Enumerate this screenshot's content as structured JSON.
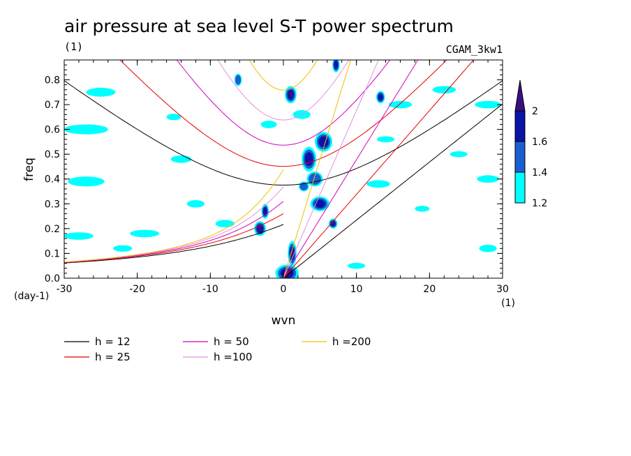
{
  "chart_data": {
    "type": "heatmap",
    "title": "air pressure at sea level S-T power spectrum",
    "subtitle_left": "(1)",
    "subtitle_right": "CGAM_3kw1",
    "xlabel": "wvn",
    "ylabel": "freq",
    "x_unit": "(1)",
    "y_unit": "(day-1)",
    "xlim": [
      -30,
      30
    ],
    "ylim": [
      0,
      0.88
    ],
    "x_ticks": [
      -30,
      -20,
      -10,
      0,
      10,
      20,
      30
    ],
    "x_tick_labels": [
      "-30",
      "-20",
      "-10",
      "0",
      "10",
      "20",
      "30"
    ],
    "y_ticks": [
      0,
      0.1,
      0.2,
      0.3,
      0.4,
      0.5,
      0.6,
      0.7,
      0.8
    ],
    "y_tick_labels": [
      "0.0",
      "0.1",
      "0.2",
      "0.3",
      "0.4",
      "0.5",
      "0.6",
      "0.7",
      "0.8"
    ],
    "colorbar": {
      "levels": [
        1.2,
        1.4,
        1.6,
        2
      ],
      "level_labels": [
        "1.2",
        "1.4",
        "1.6",
        "2"
      ],
      "colors": [
        "#00ffff",
        "#1a5fd0",
        "#0a14a8",
        "#3a1080"
      ]
    },
    "dispersion_curves": [
      {
        "name": "h = 12",
        "h": 12,
        "color": "#000000"
      },
      {
        "name": "h = 25",
        "h": 25,
        "color": "#e00000"
      },
      {
        "name": "h = 50",
        "h": 50,
        "color": "#d000c0"
      },
      {
        "name": "h =100",
        "h": 100,
        "color": "#e090e0"
      },
      {
        "name": "h =200",
        "h": 200,
        "color": "#f0c000"
      }
    ],
    "shaded_regions": [
      {
        "x": 0.5,
        "y": 0.02,
        "rx": 1.6,
        "ry": 0.035,
        "level": 2
      },
      {
        "x": 1.2,
        "y": 0.1,
        "rx": 0.6,
        "ry": 0.05,
        "level": 2
      },
      {
        "x": 1.0,
        "y": 0.74,
        "rx": 0.8,
        "ry": 0.035,
        "level": 2
      },
      {
        "x": -3.2,
        "y": 0.2,
        "rx": 0.8,
        "ry": 0.03,
        "level": 2
      },
      {
        "x": 5.0,
        "y": 0.3,
        "rx": 1.3,
        "ry": 0.03,
        "level": 1.6
      },
      {
        "x": 3.5,
        "y": 0.48,
        "rx": 1.0,
        "ry": 0.05,
        "level": 1.6
      },
      {
        "x": 5.5,
        "y": 0.55,
        "rx": 1.2,
        "ry": 0.04,
        "level": 1.6
      },
      {
        "x": 6.8,
        "y": 0.22,
        "rx": 0.6,
        "ry": 0.02,
        "level": 2
      },
      {
        "x": -2.5,
        "y": 0.27,
        "rx": 0.5,
        "ry": 0.03,
        "level": 1.6
      },
      {
        "x": 7.2,
        "y": 0.86,
        "rx": 0.5,
        "ry": 0.03,
        "level": 1.6
      },
      {
        "x": 13.3,
        "y": 0.73,
        "rx": 0.6,
        "ry": 0.025,
        "level": 1.6
      },
      {
        "x": -6.2,
        "y": 0.8,
        "rx": 0.5,
        "ry": 0.025,
        "level": 1.4
      },
      {
        "x": 4.3,
        "y": 0.4,
        "rx": 1.1,
        "ry": 0.03,
        "level": 1.4
      },
      {
        "x": 2.8,
        "y": 0.37,
        "rx": 0.7,
        "ry": 0.02,
        "level": 1.4
      },
      {
        "x": -27,
        "y": 0.39,
        "rx": 2.5,
        "ry": 0.02,
        "level": 1.2
      },
      {
        "x": -27,
        "y": 0.6,
        "rx": 3.0,
        "ry": 0.02,
        "level": 1.2
      },
      {
        "x": -25,
        "y": 0.75,
        "rx": 2.0,
        "ry": 0.018,
        "level": 1.2
      },
      {
        "x": -28,
        "y": 0.17,
        "rx": 2.0,
        "ry": 0.015,
        "level": 1.2
      },
      {
        "x": -19,
        "y": 0.18,
        "rx": 2.0,
        "ry": 0.015,
        "level": 1.2
      },
      {
        "x": -14,
        "y": 0.48,
        "rx": 1.4,
        "ry": 0.015,
        "level": 1.2
      },
      {
        "x": -12,
        "y": 0.3,
        "rx": 1.2,
        "ry": 0.015,
        "level": 1.2
      },
      {
        "x": -8,
        "y": 0.22,
        "rx": 1.3,
        "ry": 0.015,
        "level": 1.2
      },
      {
        "x": 13,
        "y": 0.38,
        "rx": 1.6,
        "ry": 0.015,
        "level": 1.2
      },
      {
        "x": 16,
        "y": 0.7,
        "rx": 1.6,
        "ry": 0.015,
        "level": 1.2
      },
      {
        "x": 22,
        "y": 0.76,
        "rx": 1.6,
        "ry": 0.015,
        "level": 1.2
      },
      {
        "x": 28,
        "y": 0.7,
        "rx": 1.8,
        "ry": 0.015,
        "level": 1.2
      },
      {
        "x": 28,
        "y": 0.4,
        "rx": 1.5,
        "ry": 0.015,
        "level": 1.2
      },
      {
        "x": 28,
        "y": 0.12,
        "rx": 1.2,
        "ry": 0.015,
        "level": 1.2
      },
      {
        "x": 10,
        "y": 0.05,
        "rx": 1.2,
        "ry": 0.012,
        "level": 1.2
      },
      {
        "x": 14,
        "y": 0.56,
        "rx": 1.2,
        "ry": 0.012,
        "level": 1.2
      },
      {
        "x": -2.0,
        "y": 0.62,
        "rx": 1.1,
        "ry": 0.015,
        "level": 1.2
      },
      {
        "x": 2.5,
        "y": 0.66,
        "rx": 1.2,
        "ry": 0.018,
        "level": 1.2
      },
      {
        "x": -22,
        "y": 0.12,
        "rx": 1.3,
        "ry": 0.013,
        "level": 1.2
      },
      {
        "x": -15,
        "y": 0.65,
        "rx": 1.0,
        "ry": 0.013,
        "level": 1.2
      },
      {
        "x": 19,
        "y": 0.28,
        "rx": 1.0,
        "ry": 0.012,
        "level": 1.2
      },
      {
        "x": 24,
        "y": 0.5,
        "rx": 1.2,
        "ry": 0.012,
        "level": 1.2
      }
    ]
  }
}
